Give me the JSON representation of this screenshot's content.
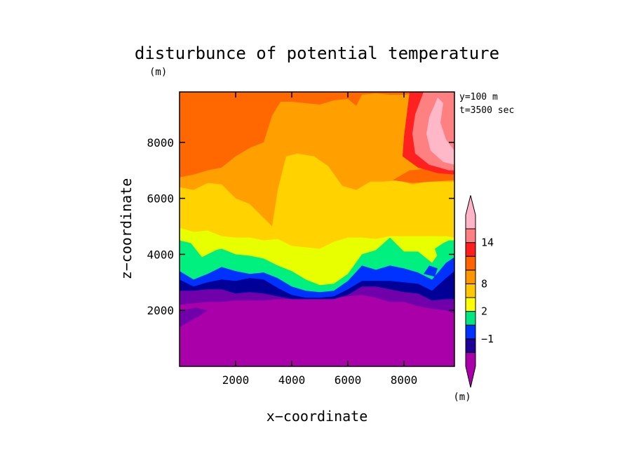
{
  "chart_data": {
    "type": "heatmap",
    "title": "disturbunce of potential temperature",
    "title_unit": "(m)",
    "xlabel": "x−coordinate",
    "ylabel": "z−coordinate",
    "xlim": [
      0,
      9800
    ],
    "ylim": [
      0,
      9800
    ],
    "xticks": [
      2000,
      4000,
      6000,
      8000
    ],
    "yticks": [
      2000,
      4000,
      6000,
      8000
    ],
    "xtick_labels": [
      "2000",
      "4000",
      "6000",
      "8000"
    ],
    "ytick_labels": [
      "2000",
      "4000",
      "6000",
      "8000"
    ],
    "annotations": [
      "y=100 m",
      "t=3500 sec"
    ],
    "colorbar": {
      "unit": "(m)",
      "colors": [
        "#aa00aa",
        "#1e0096",
        "#0032ff",
        "#00e680",
        "#ffff00",
        "#ffc800",
        "#ff9600",
        "#ff6400",
        "#ff1e1e",
        "#ff8080",
        "#ffb4c8"
      ],
      "tick_labels": [
        "−1",
        "2",
        "8",
        "14"
      ],
      "tick_boundaries": [
        2,
        4,
        6,
        9
      ]
    },
    "levels": [
      {
        "color": "#7000aa",
        "top": [
          [
            0,
            2200
          ],
          [
            500,
            2250
          ],
          [
            1000,
            2300
          ],
          [
            1500,
            2300
          ],
          [
            2000,
            2350
          ],
          [
            2500,
            2350
          ],
          [
            3000,
            2350
          ],
          [
            3500,
            2400
          ],
          [
            4000,
            2400
          ],
          [
            4500,
            2400
          ],
          [
            5000,
            2450
          ],
          [
            5500,
            2450
          ],
          [
            6000,
            2500
          ],
          [
            6500,
            2550
          ],
          [
            7000,
            2450
          ],
          [
            7500,
            2300
          ],
          [
            8000,
            2300
          ],
          [
            8500,
            2150
          ],
          [
            9000,
            2050
          ],
          [
            9500,
            2000
          ],
          [
            9800,
            1900
          ]
        ]
      },
      {
        "color": "#000096",
        "top": [
          [
            0,
            2700
          ],
          [
            500,
            2700
          ],
          [
            1000,
            2750
          ],
          [
            1500,
            2750
          ],
          [
            2000,
            2600
          ],
          [
            2500,
            2650
          ],
          [
            3000,
            2600
          ],
          [
            3500,
            2500
          ],
          [
            4000,
            2400
          ],
          [
            4500,
            2400
          ],
          [
            5000,
            2400
          ],
          [
            5500,
            2400
          ],
          [
            6000,
            2550
          ],
          [
            6500,
            2850
          ],
          [
            7000,
            2850
          ],
          [
            7500,
            2750
          ],
          [
            8000,
            2650
          ],
          [
            8500,
            2600
          ],
          [
            9000,
            2350
          ],
          [
            9500,
            2400
          ],
          [
            9800,
            2400
          ]
        ]
      },
      {
        "color": "#0032ff",
        "top": [
          [
            0,
            3100
          ],
          [
            500,
            2850
          ],
          [
            1000,
            3000
          ],
          [
            1500,
            3100
          ],
          [
            2000,
            3050
          ],
          [
            2500,
            3150
          ],
          [
            3000,
            3100
          ],
          [
            3500,
            2800
          ],
          [
            4000,
            2550
          ],
          [
            4500,
            2450
          ],
          [
            5000,
            2450
          ],
          [
            5500,
            2500
          ],
          [
            6000,
            2750
          ],
          [
            6500,
            3050
          ],
          [
            7000,
            3050
          ],
          [
            7500,
            3050
          ],
          [
            8000,
            3000
          ],
          [
            8500,
            2950
          ],
          [
            9000,
            2700
          ],
          [
            9500,
            3150
          ],
          [
            9800,
            3400
          ]
        ]
      },
      {
        "color": "#00f080",
        "top": [
          [
            0,
            3400
          ],
          [
            500,
            3100
          ],
          [
            1000,
            3300
          ],
          [
            1500,
            3550
          ],
          [
            2000,
            3400
          ],
          [
            2500,
            3300
          ],
          [
            3000,
            3350
          ],
          [
            3500,
            3150
          ],
          [
            4000,
            2850
          ],
          [
            4500,
            2700
          ],
          [
            5000,
            2650
          ],
          [
            5500,
            2700
          ],
          [
            6000,
            3050
          ],
          [
            6500,
            3600
          ],
          [
            7000,
            3450
          ],
          [
            7500,
            3600
          ],
          [
            8000,
            3500
          ],
          [
            8500,
            3350
          ],
          [
            9000,
            3100
          ],
          [
            9500,
            3700
          ],
          [
            9800,
            3900
          ]
        ]
      },
      {
        "color": "#e8ff00",
        "top": [
          [
            0,
            4500
          ],
          [
            400,
            4400
          ],
          [
            800,
            3900
          ],
          [
            1300,
            4150
          ],
          [
            1500,
            4200
          ],
          [
            2000,
            4000
          ],
          [
            2500,
            3950
          ],
          [
            3000,
            3850
          ],
          [
            3500,
            3600
          ],
          [
            4000,
            3400
          ],
          [
            4500,
            3100
          ],
          [
            5000,
            2900
          ],
          [
            5500,
            2950
          ],
          [
            6000,
            3300
          ],
          [
            6500,
            4000
          ],
          [
            7000,
            4150
          ],
          [
            7500,
            4600
          ],
          [
            8000,
            4100
          ],
          [
            8500,
            4100
          ],
          [
            9000,
            3700
          ],
          [
            9500,
            4400
          ],
          [
            9800,
            4300
          ]
        ]
      },
      {
        "color": "#ffd200",
        "top": [
          [
            0,
            4950
          ],
          [
            500,
            4800
          ],
          [
            1000,
            4850
          ],
          [
            1500,
            4650
          ],
          [
            2000,
            4600
          ],
          [
            2500,
            4600
          ],
          [
            3000,
            4500
          ],
          [
            3500,
            4550
          ],
          [
            4000,
            4300
          ],
          [
            4500,
            4250
          ],
          [
            5000,
            4200
          ],
          [
            5500,
            4450
          ],
          [
            6000,
            4600
          ],
          [
            6500,
            4600
          ],
          [
            7000,
            4550
          ],
          [
            7500,
            4650
          ],
          [
            8000,
            4650
          ],
          [
            8500,
            4650
          ],
          [
            9000,
            4650
          ],
          [
            9500,
            4650
          ],
          [
            9800,
            4600
          ]
        ]
      },
      {
        "color": "#ffa000",
        "top": [
          [
            0,
            6400
          ],
          [
            500,
            6300
          ],
          [
            1000,
            6550
          ],
          [
            1500,
            6500
          ],
          [
            2000,
            6000
          ],
          [
            2500,
            5800
          ],
          [
            3000,
            5300
          ],
          [
            3300,
            5000
          ],
          [
            3500,
            6300
          ],
          [
            3800,
            7500
          ],
          [
            4200,
            7600
          ],
          [
            4800,
            7500
          ],
          [
            5300,
            7150
          ],
          [
            5800,
            6450
          ],
          [
            6300,
            6300
          ],
          [
            6800,
            6600
          ],
          [
            7300,
            6600
          ],
          [
            7800,
            6650
          ],
          [
            8300,
            6500
          ],
          [
            8800,
            6600
          ],
          [
            9300,
            6600
          ],
          [
            9800,
            6600
          ]
        ]
      },
      {
        "color": "#ff6800",
        "top": [
          [
            0,
            6750
          ],
          [
            500,
            6850
          ],
          [
            1000,
            7000
          ],
          [
            1500,
            7100
          ],
          [
            2000,
            7500
          ],
          [
            2500,
            7800
          ],
          [
            3000,
            8000
          ],
          [
            3300,
            8950
          ],
          [
            3600,
            9450
          ],
          [
            4000,
            9450
          ],
          [
            4500,
            9400
          ],
          [
            5000,
            9350
          ],
          [
            5500,
            9500
          ],
          [
            6000,
            9550
          ],
          [
            6300,
            9300
          ],
          [
            6500,
            9700
          ],
          [
            7000,
            9750
          ],
          [
            7500,
            9700
          ],
          [
            8000,
            9700
          ],
          [
            8500,
            9750
          ],
          [
            9000,
            9700
          ],
          [
            9500,
            9700
          ],
          [
            9800,
            9800
          ]
        ]
      },
      {
        "color": "#ff2020",
        "top": [
          [
            0,
            9800
          ],
          [
            9800,
            9800
          ]
        ]
      }
    ],
    "patches": [
      {
        "color": "#ff6800",
        "points": [
          [
            7600,
            6650
          ],
          [
            8200,
            7000
          ],
          [
            8700,
            7050
          ],
          [
            9200,
            6900
          ],
          [
            9800,
            6850
          ],
          [
            9800,
            6650
          ],
          [
            9000,
            6600
          ],
          [
            8300,
            6550
          ]
        ]
      },
      {
        "color": "#ff2020",
        "points": [
          [
            8200,
            9800
          ],
          [
            8100,
            9000
          ],
          [
            8000,
            8200
          ],
          [
            7950,
            7500
          ],
          [
            8500,
            7100
          ],
          [
            9200,
            6900
          ],
          [
            9800,
            6850
          ],
          [
            9800,
            9800
          ]
        ]
      },
      {
        "color": "#ff8080",
        "points": [
          [
            8700,
            9800
          ],
          [
            8400,
            9000
          ],
          [
            8300,
            8300
          ],
          [
            8400,
            7600
          ],
          [
            8900,
            7200
          ],
          [
            9600,
            7000
          ],
          [
            9800,
            7000
          ],
          [
            9800,
            9800
          ]
        ]
      },
      {
        "color": "#ffb8c8",
        "points": [
          [
            9200,
            9600
          ],
          [
            8900,
            8900
          ],
          [
            8800,
            8300
          ],
          [
            8950,
            7700
          ],
          [
            9400,
            7300
          ],
          [
            9800,
            7200
          ],
          [
            9800,
            7700
          ],
          [
            9500,
            8100
          ],
          [
            9300,
            8700
          ],
          [
            9400,
            9400
          ]
        ]
      },
      {
        "color": "#00f080",
        "points": [
          [
            9100,
            4200
          ],
          [
            9400,
            4400
          ],
          [
            9600,
            4500
          ],
          [
            9800,
            4500
          ],
          [
            9800,
            4000
          ],
          [
            9500,
            3900
          ],
          [
            9200,
            3900
          ]
        ]
      },
      {
        "color": "#0032ff",
        "points": [
          [
            8700,
            3300
          ],
          [
            8900,
            3600
          ],
          [
            9200,
            3500
          ],
          [
            9100,
            3200
          ]
        ]
      },
      {
        "color": "#7000aa",
        "points": [
          [
            0,
            1400
          ],
          [
            700,
            1800
          ],
          [
            1000,
            2000
          ],
          [
            600,
            2100
          ],
          [
            0,
            2000
          ]
        ]
      }
    ]
  }
}
